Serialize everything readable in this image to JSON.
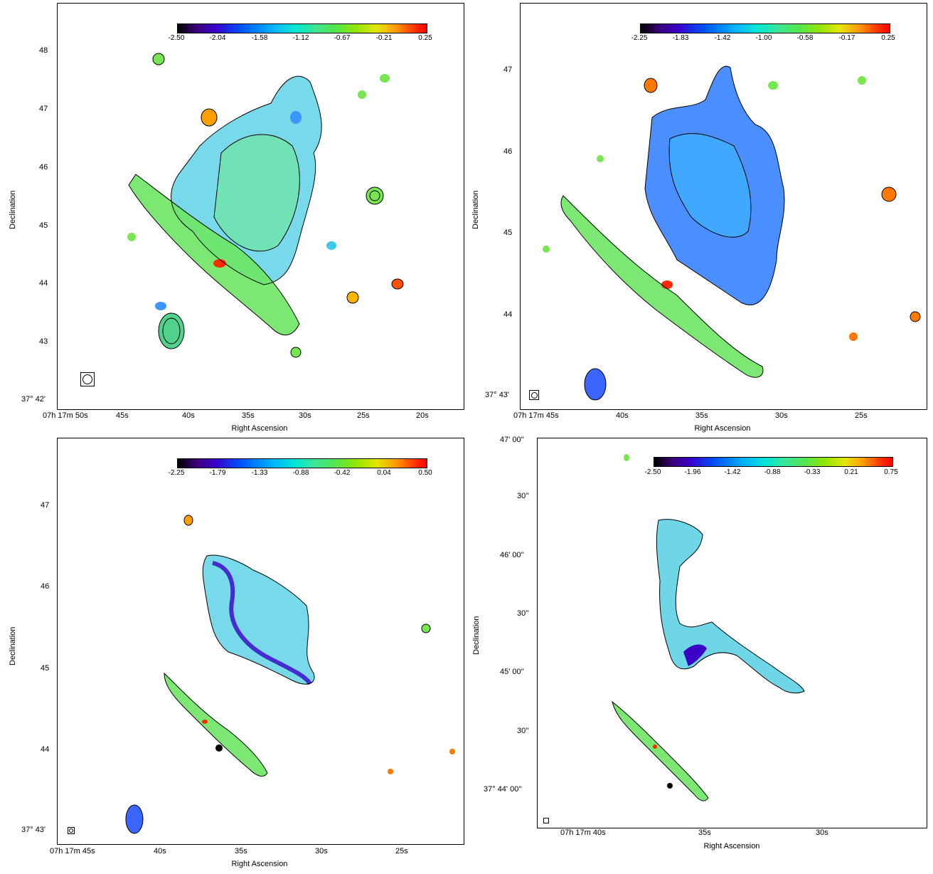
{
  "panels": [
    {
      "id": "top-left",
      "colorbar_ticks": [
        "-2.50",
        "-2.04",
        "-1.58",
        "-1.12",
        "-0.67",
        "-0.21",
        "0.25"
      ],
      "dec_ticks": [
        "48",
        "47",
        "46",
        "45",
        "44",
        "43",
        "37° 42'"
      ],
      "ra_ticks": [
        "07h 17m 50s",
        "45s",
        "40s",
        "35s",
        "30s",
        "25s",
        "20s"
      ],
      "xlabel": "Right Ascension",
      "ylabel": "Declination"
    },
    {
      "id": "top-right",
      "colorbar_ticks": [
        "-2.25",
        "-1.83",
        "-1.42",
        "-1.00",
        "-0.58",
        "-0.17",
        "0.25"
      ],
      "dec_ticks": [
        "47",
        "46",
        "45",
        "44",
        "37° 43'"
      ],
      "ra_ticks": [
        "07h 17m 45s",
        "40s",
        "35s",
        "30s",
        "25s"
      ],
      "xlabel": "Right Ascension",
      "ylabel": "Declination"
    },
    {
      "id": "bottom-left",
      "colorbar_ticks": [
        "-2.25",
        "-1.79",
        "-1.33",
        "-0.88",
        "-0.42",
        "0.04",
        "0.50"
      ],
      "dec_ticks": [
        "47",
        "46",
        "45",
        "44",
        "37° 43'"
      ],
      "ra_ticks": [
        "07h 17m 45s",
        "40s",
        "35s",
        "30s",
        "25s"
      ],
      "xlabel": "Right Ascension",
      "ylabel": "Declination"
    },
    {
      "id": "bottom-right",
      "colorbar_ticks": [
        "-2.50",
        "-1.96",
        "-1.42",
        "-0.88",
        "-0.33",
        "0.21",
        "0.75"
      ],
      "dec_ticks": [
        "47' 00''",
        "30''",
        "46' 00''",
        "30''",
        "45' 00''",
        "30''",
        "37° 44' 00''"
      ],
      "ra_ticks": [
        "07h 17m 40s",
        "35s",
        "30s"
      ],
      "xlabel": "Right Ascension",
      "ylabel": "Declination"
    }
  ]
}
